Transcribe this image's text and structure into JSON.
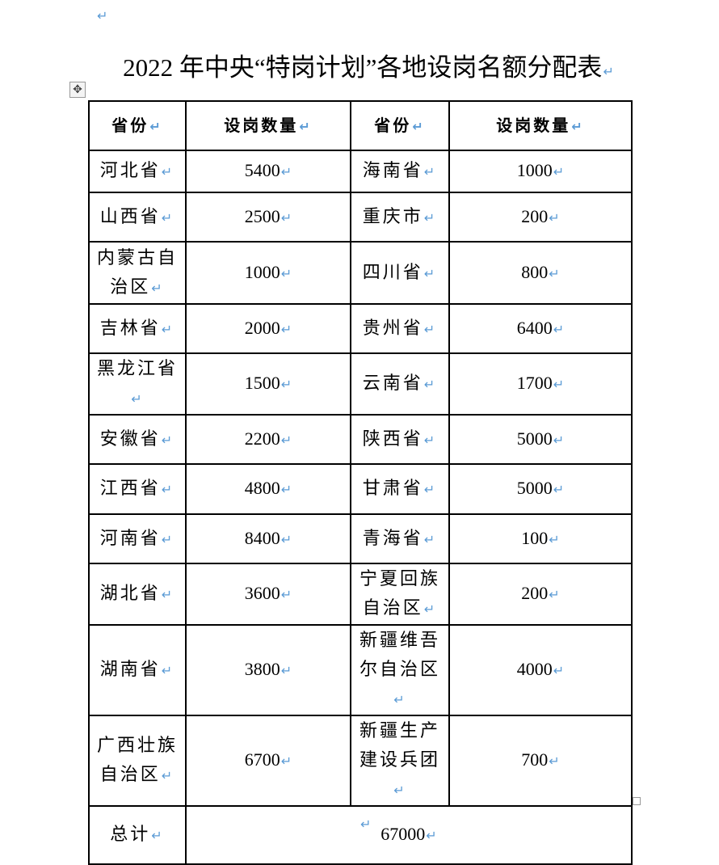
{
  "document": {
    "title": "2022 年中央“特岗计划”各地设岗名额分配表",
    "table": {
      "headers": [
        "省份",
        "设岗数量",
        "省份",
        "设岗数量"
      ],
      "rows": [
        [
          "河北省",
          "5400",
          "海南省",
          "1000"
        ],
        [
          "山西省",
          "2500",
          "重庆市",
          "200"
        ],
        [
          "内蒙古自治区",
          "1000",
          "四川省",
          "800"
        ],
        [
          "吉林省",
          "2000",
          "贵州省",
          "6400"
        ],
        [
          "黑龙江省",
          "1500",
          "云南省",
          "1700"
        ],
        [
          "安徽省",
          "2200",
          "陕西省",
          "5000"
        ],
        [
          "江西省",
          "4800",
          "甘肃省",
          "5000"
        ],
        [
          "河南省",
          "8400",
          "青海省",
          "100"
        ],
        [
          "湖北省",
          "3600",
          "宁夏回族自治区",
          "200"
        ],
        [
          "湖南省",
          "3800",
          "新疆维吾尔自治区",
          "4000"
        ],
        [
          "广西壮族自治区",
          "6700",
          "新疆生产建设兵团",
          "700"
        ]
      ],
      "total_label": "总计",
      "total_value": "67000"
    },
    "icons": {
      "move_handle": "move-arrows-icon",
      "resize_handle": "resize-square-icon",
      "paragraph_mark": "paragraph-return-icon"
    },
    "colors": {
      "paragraph_mark": "#5b9bd5"
    }
  }
}
